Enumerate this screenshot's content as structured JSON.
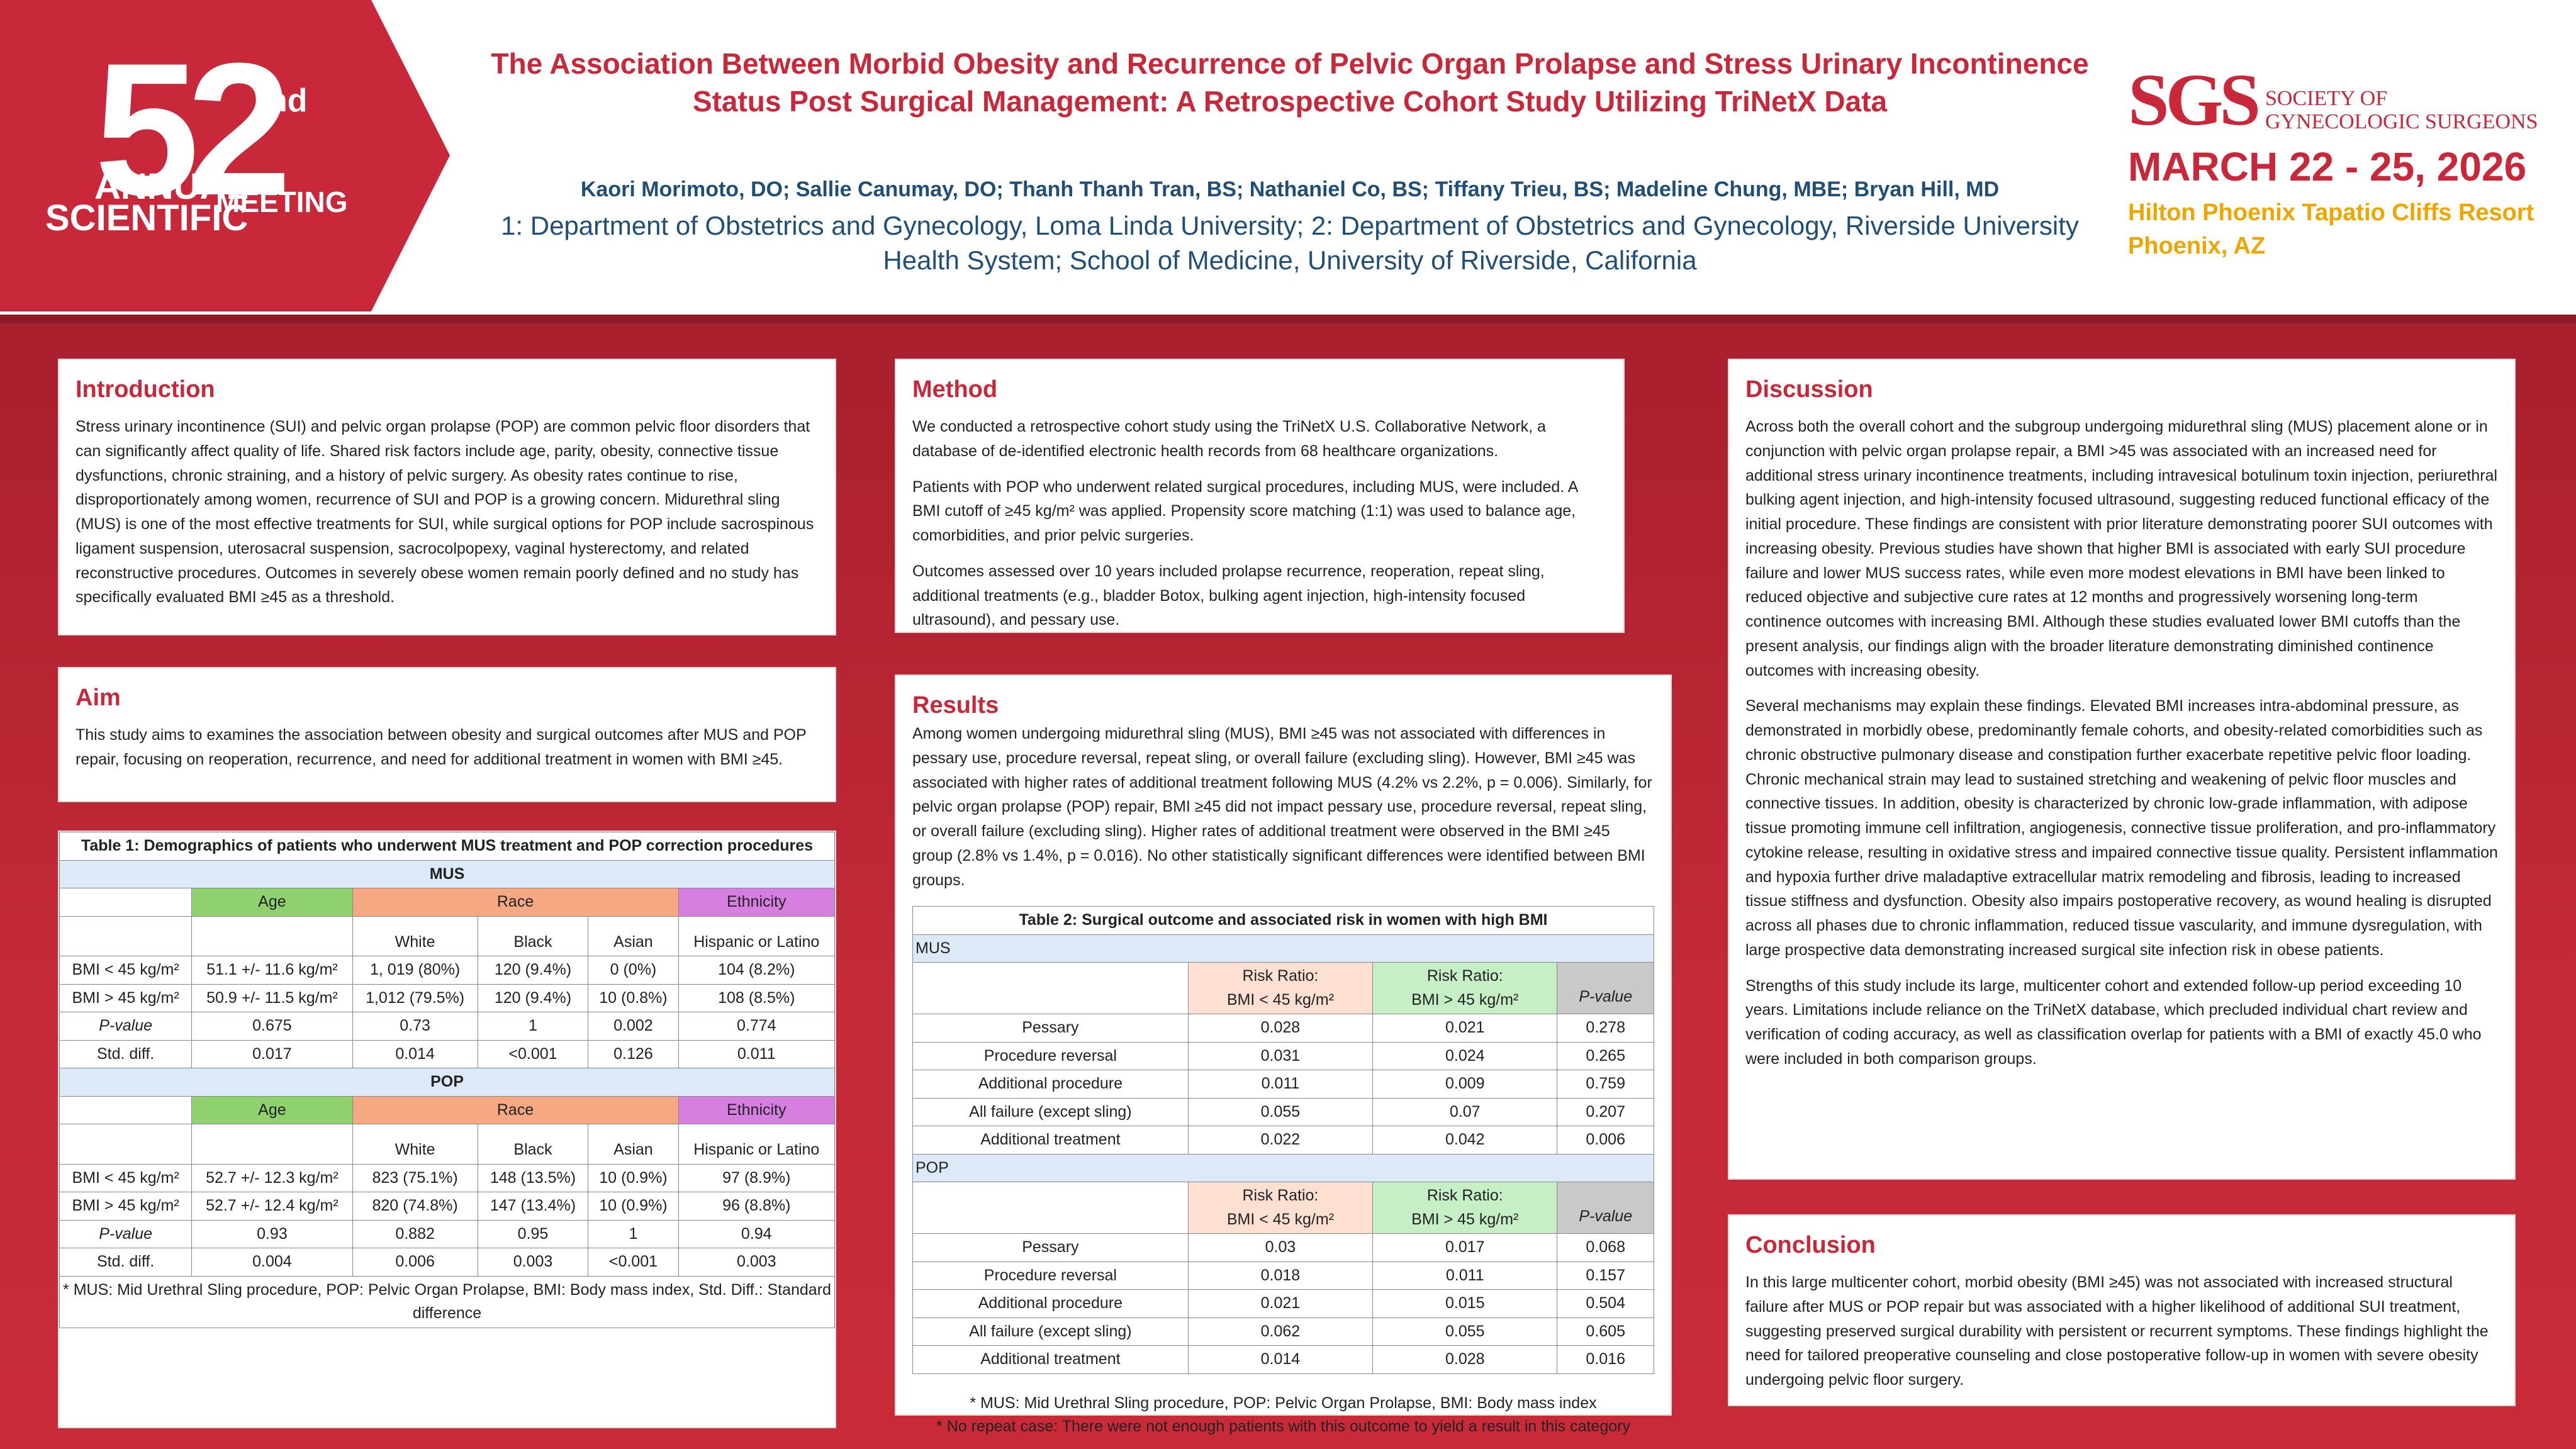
{
  "badge": {
    "number": "52",
    "suffix": "nd",
    "line1": "ANNUAL",
    "line2": "SCIENTIFIC",
    "line3": "MEETING"
  },
  "title": "The Association Between Morbid Obesity and Recurrence of Pelvic Organ Prolapse and Stress Urinary Incontinence Status Post Surgical Management:  A Retrospective Cohort Study Utilizing TriNetX Data",
  "authors": "Kaori Morimoto, DO; Sallie Canumay, DO; Thanh Thanh Tran, BS; Nathaniel Co, BS; Tiffany Trieu, BS; Madeline Chung, MBE; Bryan Hill, MD",
  "affiliations": "1: Department of Obstetrics and Gynecology, Loma Linda University; 2: Department of Obstetrics and Gynecology, Riverside University Health System; School of Medicine, University of Riverside, California",
  "sgs": {
    "logo": "SGS",
    "name1": "SOCIETY OF",
    "name2": "GYNECOLOGIC SURGEONS",
    "dates": "MARCH 22 - 25, 2026",
    "venue": "Hilton Phoenix Tapatio Cliffs Resort",
    "city": "Phoenix, AZ"
  },
  "intro": {
    "heading": "Introduction",
    "text": "Stress urinary incontinence (SUI) and pelvic organ prolapse (POP) are common pelvic floor disorders that can significantly affect quality of life. Shared risk factors include age, parity, obesity, connective tissue dysfunctions, chronic straining, and a history of pelvic surgery. As obesity rates continue to rise, disproportionately among women, recurrence of SUI and POP is a growing concern. Midurethral sling (MUS) is one of the most effective treatments for SUI, while surgical options for POP include sacrospinous ligament suspension, uterosacral suspension, sacrocolpopexy, vaginal hysterectomy, and related reconstructive procedures. Outcomes in severely obese women remain poorly defined and no study has specifically evaluated BMI ≥45 as a threshold."
  },
  "aim": {
    "heading": "Aim",
    "text": "This study aims to examines the association between obesity and surgical outcomes after MUS and POP repair, focusing on reoperation, recurrence, and need for additional treatment in women with BMI ≥45."
  },
  "table1": {
    "caption": "Table 1: Demographics of patients who underwent MUS treatment and POP correction procedures",
    "groups": [
      "MUS",
      "POP"
    ],
    "hdr": {
      "age": "Age",
      "race": "Race",
      "eth": "Ethnicity",
      "white": "White",
      "black": "Black",
      "asian": "Asian",
      "hisp": "Hispanic or Latino"
    },
    "mus_rows": [
      {
        "label": "BMI < 45 kg/m²",
        "age": "51.1 +/- 11.6 kg/m²",
        "white": "1, 019 (80%)",
        "black": "120 (9.4%)",
        "asian": "0 (0%)",
        "hisp": "104 (8.2%)"
      },
      {
        "label": "BMI > 45 kg/m²",
        "age": "50.9 +/- 11.5 kg/m²",
        "white": "1,012 (79.5%)",
        "black": "120 (9.4%)",
        "asian": "10 (0.8%)",
        "hisp": "108 (8.5%)"
      },
      {
        "label": "P-value",
        "age": "0.675",
        "white": "0.73",
        "black": "1",
        "asian": "0.002",
        "hisp": "0.774"
      },
      {
        "label": "Std. diff.",
        "age": "0.017",
        "white": "0.014",
        "black": "<0.001",
        "asian": "0.126",
        "hisp": "0.011"
      }
    ],
    "pop_rows": [
      {
        "label": "BMI < 45 kg/m²",
        "age": "52.7 +/- 12.3 kg/m²",
        "white": "823 (75.1%)",
        "black": "148 (13.5%)",
        "asian": "10 (0.9%)",
        "hisp": "97 (8.9%)"
      },
      {
        "label": "BMI > 45 kg/m²",
        "age": "52.7 +/- 12.4 kg/m²",
        "white": "820 (74.8%)",
        "black": "147 (13.4%)",
        "asian": "10 (0.9%)",
        "hisp": "96 (8.8%)"
      },
      {
        "label": "P-value",
        "age": "0.93",
        "white": "0.882",
        "black": "0.95",
        "asian": "1",
        "hisp": "0.94"
      },
      {
        "label": "Std. diff.",
        "age": "0.004",
        "white": "0.006",
        "black": "0.003",
        "asian": "<0.001",
        "hisp": "0.003"
      }
    ],
    "footnote": "* MUS: Mid Urethral Sling procedure, POP: Pelvic Organ Prolapse, BMI: Body mass index, Std. Diff.: Standard difference"
  },
  "method": {
    "heading": "Method",
    "paragraphs": [
      "We conducted a retrospective cohort study using the TriNetX U.S. Collaborative Network, a database of de-identified electronic health  records from 68 healthcare organizations.",
      "Patients with POP who underwent related surgical procedures, including MUS, were included. A BMI cutoff of ≥45 kg/m² was applied. Propensity score matching (1:1) was used to balance age, comorbidities, and prior pelvic surgeries.",
      "Outcomes assessed over 10 years included prolapse recurrence, reoperation, repeat sling, additional treatments (e.g., bladder Botox, bulking agent injection, high-intensity focused ultrasound), and pessary use."
    ]
  },
  "results": {
    "heading": "Results",
    "text": "Among women undergoing midurethral sling (MUS), BMI ≥45 was not associated with differences in pessary use, procedure reversal, repeat sling, or overall failure (excluding sling). However, BMI ≥45 was associated with higher rates of additional treatment following MUS (4.2% vs 2.2%, p = 0.006). Similarly, for pelvic organ prolapse (POP) repair, BMI ≥45 did not impact pessary use, procedure reversal, repeat sling, or overall failure (excluding sling). Higher rates of additional treatment were observed in the BMI ≥45 group (2.8% vs 1.4%, p = 0.016). No other statistically significant differences were identified between BMI groups."
  },
  "table2": {
    "caption": "Table 2: Surgical outcome and associated risk in women with high BMI",
    "hdr": {
      "rr_low_1": "Risk Ratio:",
      "rr_low_2": "BMI < 45 kg/m²",
      "rr_high_1": "Risk Ratio:",
      "rr_high_2": "BMI > 45 kg/m²",
      "p": "P-value"
    },
    "groups": [
      "MUS",
      "POP"
    ],
    "mus_rows": [
      {
        "label": "Pessary",
        "low": "0.028",
        "high": "0.021",
        "p": "0.278"
      },
      {
        "label": "Procedure reversal",
        "low": "0.031",
        "high": "0.024",
        "p": "0.265"
      },
      {
        "label": "Additional procedure",
        "low": "0.011",
        "high": "0.009",
        "p": "0.759"
      },
      {
        "label": "All failure (except sling)",
        "low": "0.055",
        "high": "0.07",
        "p": "0.207"
      },
      {
        "label": "Additional treatment",
        "low": "0.022",
        "high": "0.042",
        "p": "0.006"
      }
    ],
    "pop_rows": [
      {
        "label": "Pessary",
        "low": "0.03",
        "high": "0.017",
        "p": "0.068"
      },
      {
        "label": "Procedure reversal",
        "low": "0.018",
        "high": "0.011",
        "p": "0.157"
      },
      {
        "label": "Additional procedure",
        "low": "0.021",
        "high": "0.015",
        "p": "0.504"
      },
      {
        "label": "All failure (except sling)",
        "low": "0.062",
        "high": "0.055",
        "p": "0.605"
      },
      {
        "label": "Additional treatment",
        "low": "0.014",
        "high": "0.028",
        "p": "0.016"
      }
    ],
    "note1": "* MUS: Mid Urethral Sling procedure, POP: Pelvic Organ Prolapse, BMI: Body mass index",
    "note2": "* No repeat case: There were not enough patients with this outcome to yield a result in this category"
  },
  "discussion": {
    "heading": "Discussion",
    "paragraphs": [
      "Across both the overall cohort and the subgroup undergoing midurethral sling (MUS) placement alone or in conjunction with pelvic organ prolapse repair, a BMI >45 was associated with an increased need for additional stress urinary incontinence treatments, including intravesical botulinum toxin injection, periurethral bulking agent injection, and high-intensity focused ultrasound, suggesting reduced functional efficacy of the initial procedure. These findings are consistent with prior literature demonstrating poorer SUI outcomes with increasing obesity. Previous studies have shown that higher BMI is associated with early SUI procedure failure and lower MUS success rates, while even more modest elevations in BMI have been linked to reduced objective and subjective cure rates at 12 months and progressively worsening long-term continence outcomes with increasing BMI. Although these studies evaluated lower BMI cutoffs than the present analysis, our findings align with the broader literature demonstrating diminished continence outcomes with increasing obesity.",
      "Several mechanisms may explain these findings. Elevated BMI increases intra-abdominal pressure, as demonstrated in morbidly obese, predominantly female cohorts, and obesity-related comorbidities such as chronic obstructive pulmonary disease and constipation further exacerbate repetitive pelvic floor loading. Chronic mechanical strain may lead to sustained stretching and weakening of pelvic floor muscles and connective tissues. In addition, obesity is characterized by chronic low-grade inflammation, with adipose tissue promoting immune cell infiltration, angiogenesis, connective tissue proliferation, and pro-inflammatory cytokine release, resulting in oxidative stress and impaired connective tissue quality. Persistent inflammation and hypoxia further drive maladaptive extracellular matrix remodeling and fibrosis, leading to increased tissue stiffness and dysfunction. Obesity also impairs postoperative recovery, as wound healing is disrupted across all phases due to chronic inflammation, reduced tissue vascularity, and immune dysregulation, with large prospective data demonstrating increased surgical site infection risk in obese patients.",
      "Strengths of this study include its large, multicenter cohort and extended follow-up period exceeding 10 years. Limitations include reliance on the TriNetX database, which precluded individual chart review and verification of coding accuracy, as well as classification overlap for patients with a BMI of exactly 45.0 who were included in both comparison groups."
    ]
  },
  "conclusion": {
    "heading": "Conclusion",
    "text": "In this large multicenter cohort, morbid obesity (BMI ≥45) was not associated with increased structural failure after MUS or POP repair but was associated with a higher likelihood of additional SUI treatment, suggesting preserved surgical durability with persistent or recurrent symptoms. These findings highlight the need for tailored preoperative counseling and close postoperative follow-up in women with severe obesity undergoing pelvic floor surgery."
  }
}
